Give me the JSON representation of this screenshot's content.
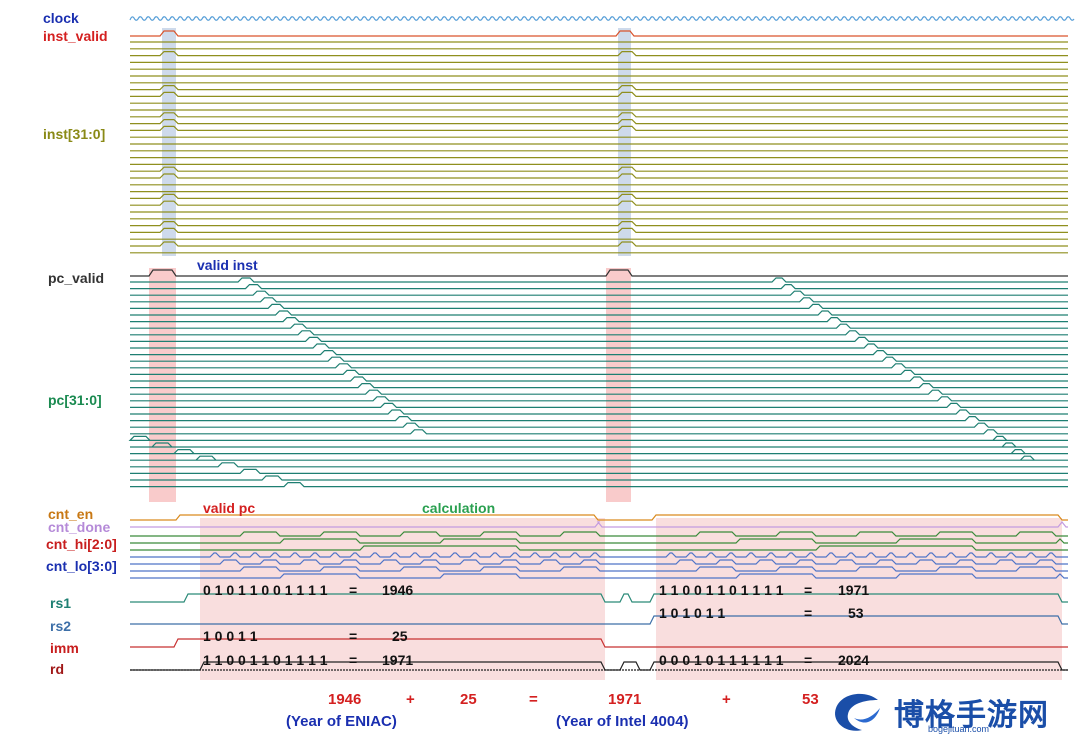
{
  "labels": {
    "clock": "clock",
    "inst_valid": "inst_valid",
    "inst": "inst[31:0]",
    "pc_valid": "pc_valid",
    "pc": "pc[31:0]",
    "cnt_en": "cnt_en",
    "cnt_done": "cnt_done",
    "cnt_hi": "cnt_hi[2:0]",
    "cnt_lo": "cnt_lo[3:0]",
    "rs1": "rs1",
    "rs2": "rs2",
    "imm": "imm",
    "rd": "rd"
  },
  "annotations": {
    "valid_inst": "valid inst",
    "valid_pc": "valid pc",
    "calculation": "calculation"
  },
  "values": {
    "rs1_a": {
      "bits": "0 1 0 1 1 0 0 1 1 1 1",
      "eq": "=",
      "dec": "1946"
    },
    "imm_a": {
      "bits": "1 0 0 1 1",
      "eq": "=",
      "dec": "25"
    },
    "rd_a": {
      "bits": "1 1 0 0 1 1 0 1 1 1 1",
      "eq": "=",
      "dec": "1971"
    },
    "rs1_b": {
      "bits": "1 1 0 0 1 1 0 1 1 1 1",
      "eq": "=",
      "dec": "1971"
    },
    "rs2_b": {
      "bits": "1 0 1 0 1 1",
      "eq": "=",
      "dec": "53"
    },
    "rd_b": {
      "bits": "0 0 0 1 0 1 1 1 1 1 1",
      "eq": "=",
      "dec": "2024"
    }
  },
  "equation": {
    "a": "1946",
    "plus1": "+",
    "b": "25",
    "eq": "=",
    "c": "1971",
    "plus2": "+",
    "d": "53"
  },
  "captions": {
    "eniac": "(Year of ENIAC)",
    "intel": "(Year of Intel 4004)"
  },
  "watermark": {
    "text": "博格手游网",
    "url": "bogejituan.com"
  },
  "colors": {
    "clock": "#5aa0d8",
    "inst_valid": "#d9532c",
    "inst": "#8f8f1e",
    "pc_valid": "#333333",
    "pc": "#1e7f72",
    "cnt_en": "#d98a1e",
    "cnt_done": "#c39be0",
    "cnt_hi": "#3a8a3a",
    "cnt_lo": "#4f74c8",
    "rs1": "#2a8a78",
    "rs2": "#3d6fa8",
    "imm": "#c83232",
    "rd": "#222222",
    "highlight_pink": "#f9dede",
    "highlight_red": "#f4a0a0",
    "highlight_blue": "#c5d4e8"
  }
}
